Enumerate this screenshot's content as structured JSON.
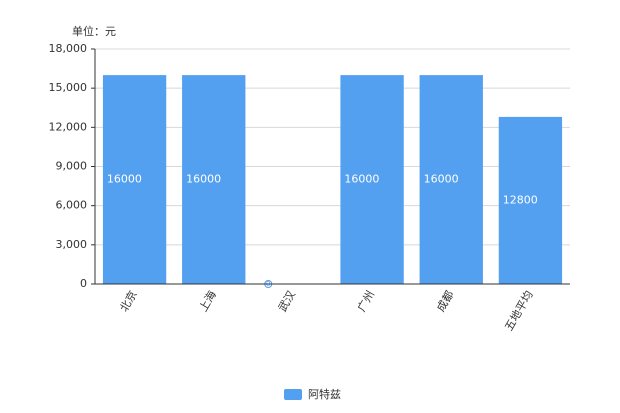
{
  "chart_data": {
    "type": "bar",
    "y_label": "单位：元",
    "categories": [
      "北京",
      "上海",
      "武汉",
      "广州",
      "成都",
      "五地平均"
    ],
    "series": [
      {
        "name": "阿特兹",
        "color": "#539ff0",
        "values": [
          16000,
          16000,
          0,
          16000,
          16000,
          12800
        ]
      }
    ],
    "ylim": [
      0,
      18000
    ],
    "yticks": [
      0,
      {
        "value": 3000,
        "label": "3,000"
      },
      {
        "value": 6000,
        "label": "6,000"
      },
      {
        "value": 9000,
        "label": "9,000"
      },
      {
        "value": 12000,
        "label": "12,000"
      },
      {
        "value": 15000,
        "label": "15,000"
      },
      {
        "value": 18000,
        "label": "18,000"
      }
    ],
    "grid": true,
    "legend": "bottom"
  }
}
